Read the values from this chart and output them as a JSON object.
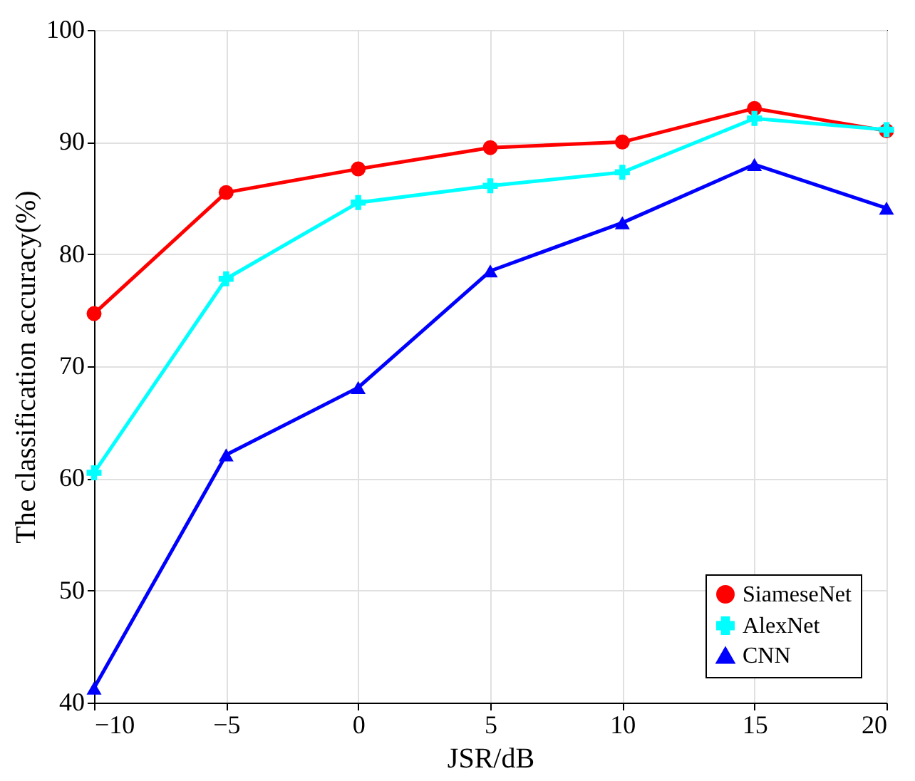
{
  "chart_data": {
    "type": "line",
    "xlabel": "JSR/dB",
    "ylabel": "The classification accuracy(%)",
    "x": [
      -10,
      -5,
      0,
      5,
      10,
      15,
      20
    ],
    "series": [
      {
        "name": "SiameseNet",
        "color": "#ff0000",
        "marker": "circle",
        "values": [
          74.7,
          85.5,
          87.6,
          89.5,
          90.0,
          93.0,
          91.0
        ]
      },
      {
        "name": "AlexNet",
        "color": "#00ffff",
        "marker": "cross",
        "values": [
          60.5,
          77.8,
          84.6,
          86.1,
          87.3,
          92.1,
          91.1
        ]
      },
      {
        "name": "CNN",
        "color": "#0000ff",
        "marker": "triangle",
        "values": [
          41.3,
          62.1,
          68.1,
          78.5,
          82.8,
          88.0,
          84.1
        ]
      }
    ],
    "xlim": [
      -10,
      20
    ],
    "xticks": [
      -10,
      -5,
      0,
      5,
      10,
      15,
      20
    ],
    "ylim": [
      40,
      100
    ],
    "yticks": [
      40,
      50,
      60,
      70,
      80,
      90,
      100
    ],
    "grid": true,
    "legend": "bottom right",
    "line_style": "solid"
  }
}
